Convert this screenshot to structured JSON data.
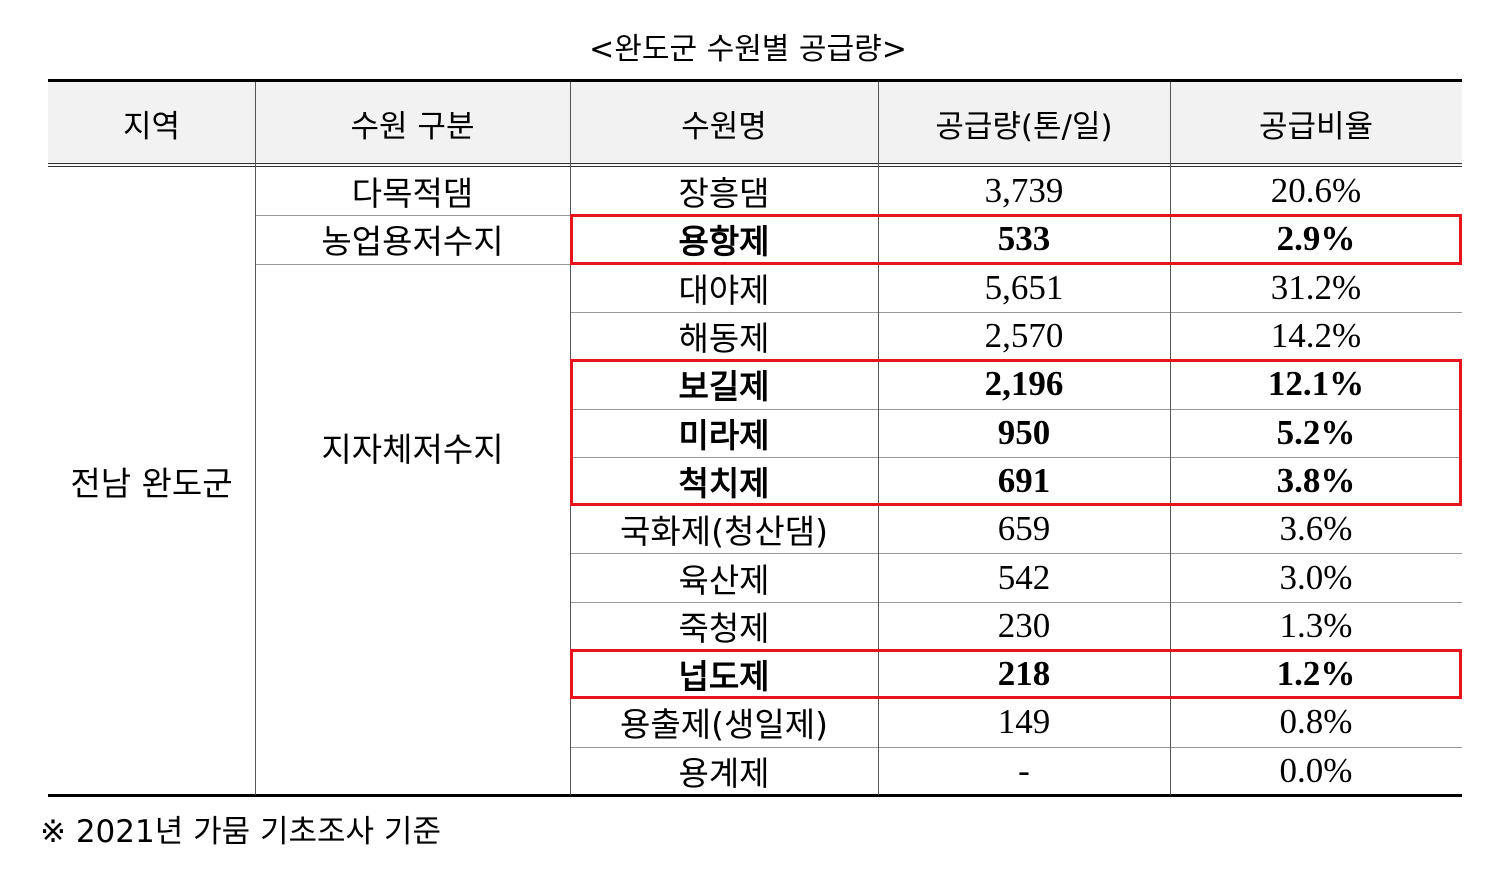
{
  "title": "<완도군 수원별 공급량>",
  "header": [
    "지역",
    "수원 구분",
    "수원명",
    "공급량(톤/일)",
    "공급비율"
  ],
  "region": "전남 완도군",
  "groups": [
    {
      "type": "다목적댐",
      "rows": [
        {
          "name": "장흥댐",
          "amount": "3,739",
          "ratio": "20.6%"
        }
      ]
    },
    {
      "type": "농업용저수지",
      "rows": [
        {
          "name": "용항제",
          "amount": "533",
          "ratio": "2.9%"
        }
      ]
    },
    {
      "type": "지자체저수지",
      "rows": [
        {
          "name": "대야제",
          "amount": "5,651",
          "ratio": "31.2%"
        },
        {
          "name": "해동제",
          "amount": "2,570",
          "ratio": "14.2%"
        },
        {
          "name": "보길제",
          "amount": "2,196",
          "ratio": "12.1%"
        },
        {
          "name": "미라제",
          "amount": "950",
          "ratio": "5.2%"
        },
        {
          "name": "척치제",
          "amount": "691",
          "ratio": "3.8%"
        },
        {
          "name": "국화제(청산댐)",
          "amount": "659",
          "ratio": "3.6%"
        },
        {
          "name": "육산제",
          "amount": "542",
          "ratio": "3.0%"
        },
        {
          "name": "죽청제",
          "amount": "230",
          "ratio": "1.3%"
        },
        {
          "name": "넙도제",
          "amount": "218",
          "ratio": "1.2%"
        },
        {
          "name": "용출제(생일제)",
          "amount": "149",
          "ratio": "0.8%"
        },
        {
          "name": "용계제",
          "amount": "-",
          "ratio": "0.0%"
        }
      ]
    }
  ],
  "footnote": "※ 2021년 가뭄 기초조사 기준"
}
